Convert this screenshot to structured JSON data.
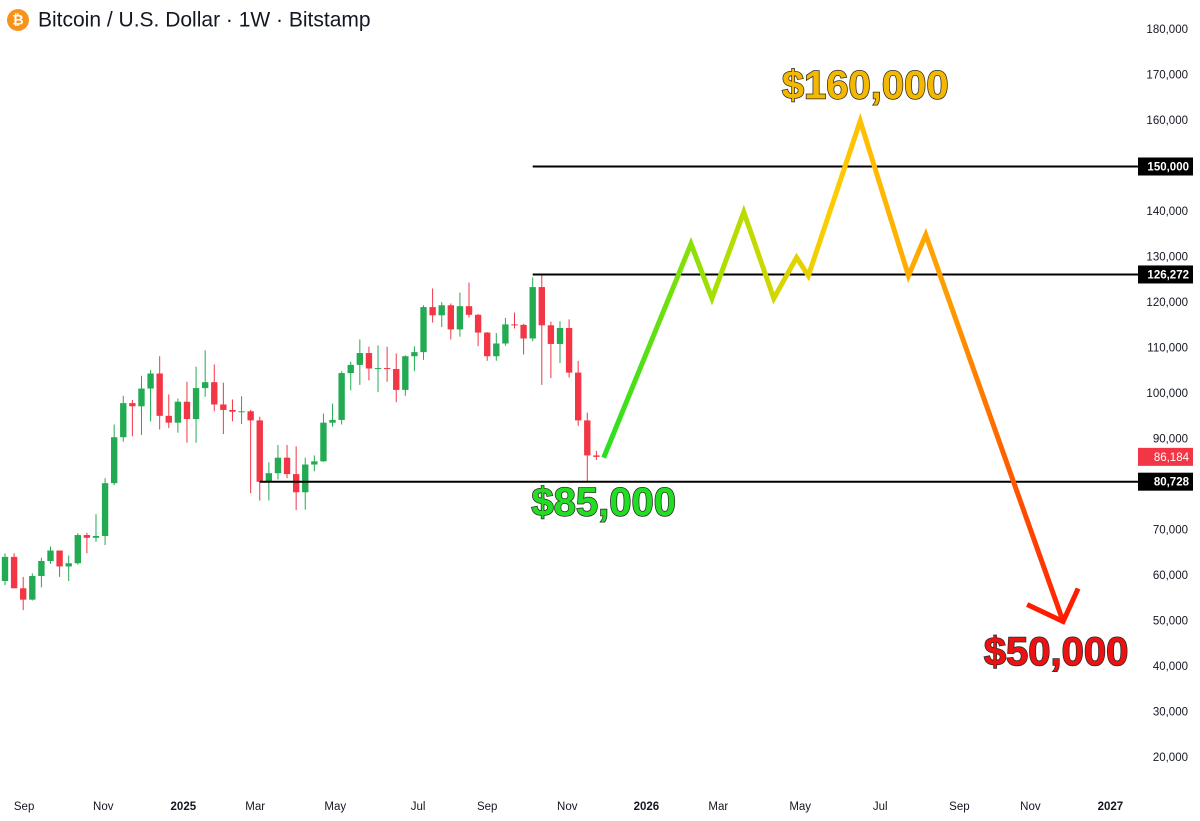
{
  "chart_data": {
    "type": "candlestick",
    "title": "Bitcoin / U.S. Dollar · 1W · Bitstamp",
    "x": [
      0,
      1,
      2,
      3,
      4,
      5,
      6,
      7,
      8,
      9,
      10,
      11,
      12,
      13,
      14,
      15,
      16,
      17,
      18,
      19,
      20,
      21,
      22,
      23,
      24,
      25,
      26,
      27,
      28,
      29,
      30,
      31,
      32,
      33,
      34,
      35,
      36,
      37,
      38,
      39,
      40,
      41,
      42,
      43,
      44,
      45,
      46,
      47,
      48,
      49,
      50,
      51,
      52,
      53,
      54,
      55,
      56,
      57,
      58,
      59,
      60,
      61,
      62,
      63,
      64,
      65
    ],
    "open": [
      58900,
      64200,
      57300,
      54800,
      60000,
      63300,
      65600,
      62100,
      62800,
      69000,
      68400,
      68800,
      80400,
      90500,
      98000,
      97300,
      101200,
      104500,
      95200,
      93700,
      98300,
      94500,
      101300,
      102600,
      97700,
      96500,
      96100,
      96200,
      94200,
      80700,
      82600,
      86000,
      82400,
      78400,
      84500,
      85200,
      93700,
      94300,
      104600,
      106400,
      109000,
      105600,
      105700,
      105500,
      100900,
      108300,
      109200,
      119100,
      117300,
      119500,
      114200,
      119300,
      117400,
      113500,
      108300,
      111100,
      115300,
      115200,
      112200,
      123500,
      115100,
      111000,
      114500,
      104700,
      94200,
      86500
    ],
    "high": [
      65000,
      65000,
      59800,
      60600,
      64000,
      66500,
      65500,
      64500,
      69400,
      69500,
      73600,
      81500,
      93300,
      99600,
      98700,
      104000,
      105300,
      108300,
      99900,
      99000,
      102700,
      106000,
      109600,
      106500,
      102500,
      98800,
      99500,
      96500,
      95000,
      85000,
      88800,
      88800,
      88500,
      86000,
      86500,
      95700,
      97900,
      105000,
      107100,
      112000,
      110400,
      110700,
      110400,
      108900,
      108500,
      110500,
      119500,
      123200,
      120200,
      119900,
      122300,
      124500,
      117600,
      113600,
      113400,
      116700,
      117900,
      115400,
      125600,
      126300,
      115900,
      116000,
      116400,
      107300,
      95900,
      87500
    ],
    "low": [
      58000,
      57800,
      52500,
      54600,
      57500,
      62700,
      59800,
      58900,
      62500,
      65000,
      67500,
      66800,
      80000,
      89500,
      90700,
      91000,
      94000,
      92200,
      92500,
      91500,
      89300,
      89300,
      99400,
      96200,
      91200,
      94000,
      93400,
      78200,
      76600,
      76600,
      81200,
      81500,
      74500,
      74600,
      83000,
      85100,
      92800,
      93300,
      100800,
      102000,
      103000,
      100400,
      102700,
      98200,
      99600,
      105000,
      107500,
      115700,
      114700,
      112000,
      112600,
      116800,
      110500,
      107300,
      107300,
      110600,
      114400,
      108700,
      111600,
      102000,
      103500,
      106800,
      103600,
      93000,
      80700,
      85500
    ],
    "close": [
      64200,
      57300,
      54800,
      60000,
      63300,
      65600,
      62100,
      62800,
      69000,
      68400,
      68800,
      80400,
      90500,
      98000,
      97300,
      101200,
      104500,
      95200,
      93700,
      98300,
      94500,
      101300,
      102600,
      97700,
      96500,
      96100,
      96200,
      94200,
      80700,
      82600,
      86000,
      82400,
      78400,
      84500,
      85200,
      93700,
      94300,
      104600,
      106400,
      109000,
      105600,
      105700,
      105500,
      100900,
      108300,
      109200,
      119100,
      117300,
      119500,
      114200,
      119300,
      117400,
      113500,
      108300,
      111100,
      115300,
      115200,
      112200,
      123500,
      115100,
      111000,
      114500,
      104700,
      94200,
      86500,
      86184
    ],
    "up_color": "#22ab52",
    "down_color": "#f23645",
    "xlim": [
      -0.55,
      124.2
    ],
    "xticks": [
      {
        "value": 2.1,
        "label": "Sep"
      },
      {
        "value": 10.8,
        "label": "Nov"
      },
      {
        "value": 19.6,
        "label": "2025"
      },
      {
        "value": 27.5,
        "label": "Mar"
      },
      {
        "value": 36.3,
        "label": "May"
      },
      {
        "value": 45.4,
        "label": "Jul"
      },
      {
        "value": 53,
        "label": "Sep"
      },
      {
        "value": 61.8,
        "label": "Nov"
      },
      {
        "value": 70.5,
        "label": "2026"
      },
      {
        "value": 78.4,
        "label": "Mar"
      },
      {
        "value": 87.4,
        "label": "May"
      },
      {
        "value": 96.2,
        "label": "Jul"
      },
      {
        "value": 104.9,
        "label": "Sep"
      },
      {
        "value": 112.7,
        "label": "Nov"
      },
      {
        "value": 121.5,
        "label": "2027"
      }
    ],
    "ylim": [
      20000,
      180000
    ],
    "yticks": [
      {
        "value": 20000,
        "label": "20,000"
      },
      {
        "value": 30000,
        "label": "30,000"
      },
      {
        "value": 40000,
        "label": "40,000"
      },
      {
        "value": 50000,
        "label": "50,000"
      },
      {
        "value": 60000,
        "label": "60,000"
      },
      {
        "value": 70000,
        "label": "70,000"
      },
      {
        "value": 80000,
        "label": "80,000"
      },
      {
        "value": 90000,
        "label": "90,000"
      },
      {
        "value": 100000,
        "label": "100,000"
      },
      {
        "value": 110000,
        "label": "110,000"
      },
      {
        "value": 120000,
        "label": "120,000"
      },
      {
        "value": 130000,
        "label": "130,000"
      },
      {
        "value": 140000,
        "label": "140,000"
      },
      {
        "value": 150000,
        "label": "150,000"
      },
      {
        "value": 160000,
        "label": "160,000"
      },
      {
        "value": 170000,
        "label": "170,000"
      },
      {
        "value": 180000,
        "label": "180,000"
      }
    ],
    "levels": [
      {
        "value": 150000,
        "label": "150,000",
        "from": 58
      },
      {
        "value": 126272,
        "label": "126,272",
        "from": 58
      },
      {
        "value": 80728,
        "label": "80,728",
        "from": 28
      }
    ],
    "current_price": {
      "value": 86184,
      "label": "86,184"
    },
    "projection": {
      "x": [
        65.8,
        75.4,
        77.7,
        81.2,
        84.5,
        87,
        88.3,
        94,
        99.3,
        101.2,
        116.3
      ],
      "values": [
        86000,
        133000,
        121000,
        140000,
        121000,
        130000,
        126000,
        160000,
        126000,
        135000,
        50000
      ],
      "colors": [
        "#22e022",
        "#a8e000",
        "#ffcc00",
        "#ff9900",
        "#ff1a00"
      ]
    },
    "annotations": [
      {
        "text": "$160,000",
        "color": "#f5b800"
      },
      {
        "text": "$85,000",
        "color": "#22dd22"
      },
      {
        "text": "$50,000",
        "color": "#ee1111"
      }
    ]
  }
}
